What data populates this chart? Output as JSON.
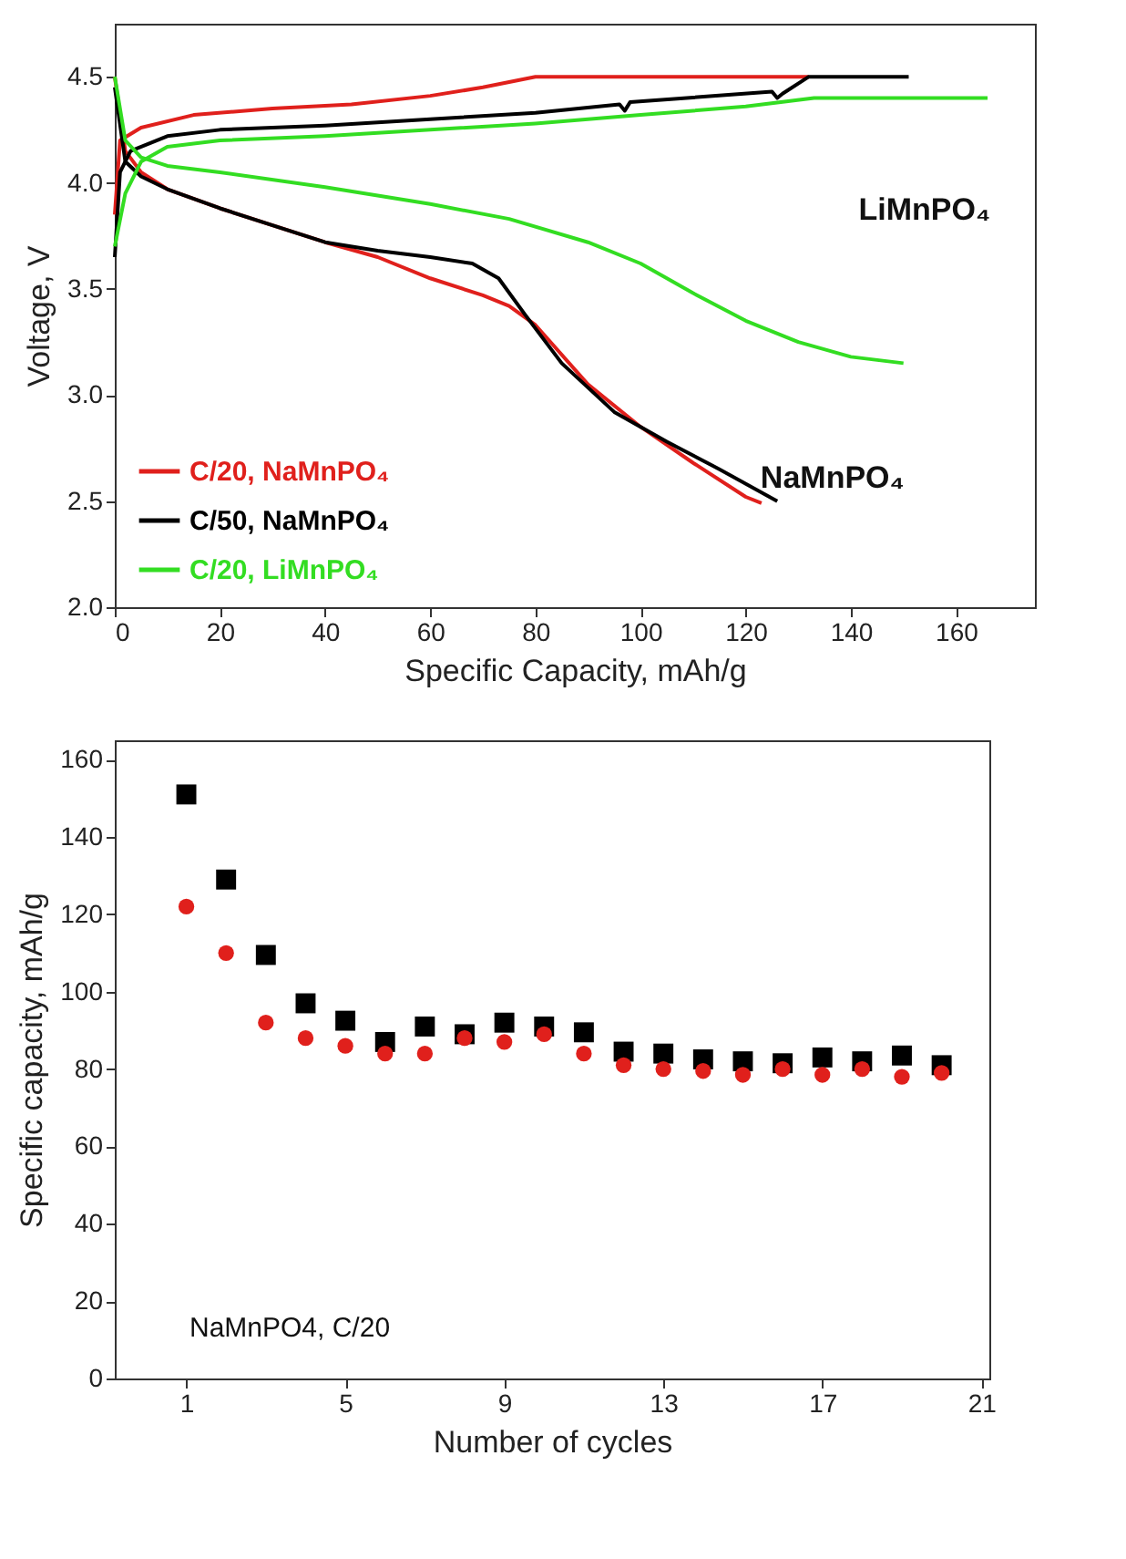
{
  "chart_data": [
    {
      "type": "line",
      "xlabel": "Specific Capacity, mAh/g",
      "ylabel": "Voltage, V",
      "xlim": [
        0,
        175
      ],
      "xticks": [
        0,
        20,
        40,
        60,
        80,
        100,
        120,
        140,
        160
      ],
      "ylim": [
        2,
        4.75
      ],
      "yticks": [
        {
          "value": 2,
          "label": "2.0"
        },
        2.5,
        {
          "value": 3,
          "label": "3.0"
        },
        3.5,
        {
          "value": 4,
          "label": "4.0"
        },
        4.5
      ],
      "grid": false,
      "legend": "bottom left",
      "marker": "none",
      "line_style": "solid",
      "annotations": [
        "LiMnPO₄",
        "NaMnPO₄"
      ],
      "series": [
        {
          "name": "C/20, NaMnPO₄",
          "color": "#e0201c",
          "x": [
            0,
            2,
            5,
            10,
            20,
            30,
            40,
            50,
            60,
            70,
            75,
            80,
            90,
            100,
            110,
            120,
            123
          ],
          "values": [
            4.5,
            4.15,
            4.05,
            3.97,
            3.88,
            3.8,
            3.72,
            3.65,
            3.55,
            3.47,
            3.42,
            3.33,
            3.05,
            2.85,
            2.68,
            2.52,
            2.49
          ]
        },
        {
          "color": "#e0201c",
          "x": [
            0,
            1,
            5,
            15,
            30,
            45,
            60,
            70,
            80,
            132
          ],
          "values": [
            3.85,
            4.2,
            4.26,
            4.32,
            4.35,
            4.37,
            4.41,
            4.45,
            4.5,
            4.5
          ]
        },
        {
          "name": "C/50, NaMnPO₄",
          "color": "#000000",
          "x": [
            0,
            2,
            5,
            10,
            20,
            30,
            40,
            50,
            60,
            68,
            73,
            78,
            85,
            95,
            105,
            115,
            126
          ],
          "values": [
            4.45,
            4.1,
            4.03,
            3.97,
            3.88,
            3.8,
            3.72,
            3.68,
            3.65,
            3.62,
            3.55,
            3.38,
            3.15,
            2.92,
            2.78,
            2.65,
            2.5
          ]
        },
        {
          "color": "#000000",
          "x": [
            0,
            1,
            3,
            10,
            20,
            40,
            60,
            80,
            96,
            97,
            98,
            125,
            126,
            127,
            132,
            151
          ],
          "values": [
            3.65,
            4.05,
            4.15,
            4.22,
            4.25,
            4.27,
            4.3,
            4.33,
            4.37,
            4.34,
            4.38,
            4.43,
            4.4,
            4.42,
            4.5,
            4.5
          ]
        },
        {
          "name": "C/20, LiMnPO₄",
          "color": "#33dd22",
          "x": [
            0,
            2,
            5,
            10,
            20,
            40,
            60,
            75,
            90,
            100,
            110,
            120,
            130,
            140,
            150
          ],
          "values": [
            4.5,
            4.2,
            4.12,
            4.08,
            4.05,
            3.98,
            3.9,
            3.83,
            3.72,
            3.62,
            3.48,
            3.35,
            3.25,
            3.18,
            3.15
          ]
        },
        {
          "color": "#33dd22",
          "x": [
            0,
            2,
            5,
            10,
            20,
            40,
            60,
            80,
            100,
            120,
            133,
            166
          ],
          "values": [
            3.7,
            3.95,
            4.1,
            4.17,
            4.2,
            4.22,
            4.25,
            4.28,
            4.32,
            4.36,
            4.4,
            4.4
          ]
        }
      ]
    },
    {
      "type": "scatter",
      "xlabel": "Number of cycles",
      "ylabel": "Specific capacity, mAh/g",
      "x": [
        1,
        2,
        3,
        4,
        5,
        6,
        7,
        8,
        9,
        10,
        11,
        12,
        13,
        14,
        15,
        16,
        17,
        18,
        19,
        20
      ],
      "xlim": [
        -0.8,
        21.2
      ],
      "xticks": [
        1,
        5,
        9,
        13,
        17,
        21
      ],
      "ylim": [
        0,
        165
      ],
      "yticks": [
        0,
        20,
        40,
        60,
        80,
        100,
        120,
        140,
        160
      ],
      "grid": false,
      "annotations": [
        "NaMnPO4, C/20"
      ],
      "series": [
        {
          "color": "#000000",
          "marker": "square",
          "values": [
            151,
            129,
            109.5,
            97,
            92.5,
            87,
            91,
            89,
            92,
            91,
            89.5,
            84.5,
            84,
            82.5,
            82,
            81.5,
            83,
            82,
            83.5,
            81
          ]
        },
        {
          "color": "#e0201c",
          "marker": "circle",
          "values": [
            122,
            110,
            92,
            88,
            86,
            84,
            84,
            88,
            87,
            89,
            84,
            81,
            80,
            79.5,
            78.5,
            80,
            78.5,
            80,
            78,
            79
          ]
        }
      ]
    }
  ]
}
